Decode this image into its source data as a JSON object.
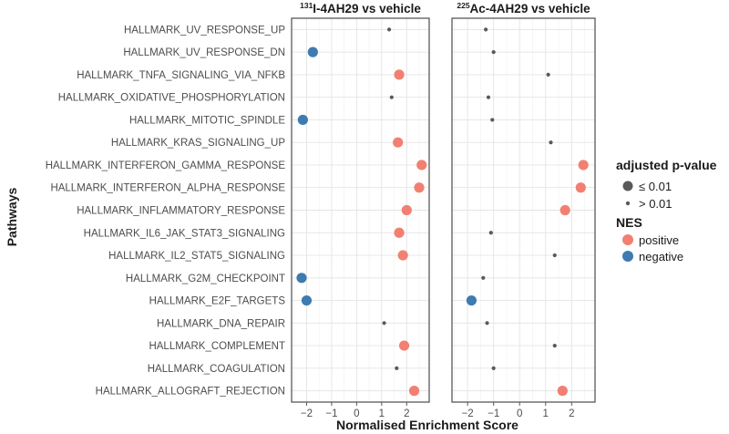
{
  "chart_data": {
    "type": "scatter",
    "title": "",
    "xlabel": "Normalised Enrichment Score",
    "ylabel": "Pathways",
    "xlim": [
      -2.6,
      2.9
    ],
    "x_ticks": [
      -2,
      -1,
      0,
      1,
      2
    ],
    "pathways": [
      "HALLMARK_UV_RESPONSE_UP",
      "HALLMARK_UV_RESPONSE_DN",
      "HALLMARK_TNFA_SIGNALING_VIA_NFKB",
      "HALLMARK_OXIDATIVE_PHOSPHORYLATION",
      "HALLMARK_MITOTIC_SPINDLE",
      "HALLMARK_KRAS_SIGNALING_UP",
      "HALLMARK_INTERFERON_GAMMA_RESPONSE",
      "HALLMARK_INTERFERON_ALPHA_RESPONSE",
      "HALLMARK_INFLAMMATORY_RESPONSE",
      "HALLMARK_IL6_JAK_STAT3_SIGNALING",
      "HALLMARK_IL2_STAT5_SIGNALING",
      "HALLMARK_G2M_CHECKPOINT",
      "HALLMARK_E2F_TARGETS",
      "HALLMARK_DNA_REPAIR",
      "HALLMARK_COMPLEMENT",
      "HALLMARK_COAGULATION",
      "HALLMARK_ALLOGRAFT_REJECTION"
    ],
    "panels": [
      {
        "title_sup": "131",
        "title_main": "I-4AH29 vs vehicle",
        "points": [
          {
            "pathway": "HALLMARK_UV_RESPONSE_UP",
            "nes": 1.3,
            "significant": false
          },
          {
            "pathway": "HALLMARK_UV_RESPONSE_DN",
            "nes": -1.75,
            "significant": true
          },
          {
            "pathway": "HALLMARK_TNFA_SIGNALING_VIA_NFKB",
            "nes": 1.7,
            "significant": true
          },
          {
            "pathway": "HALLMARK_OXIDATIVE_PHOSPHORYLATION",
            "nes": 1.4,
            "significant": false
          },
          {
            "pathway": "HALLMARK_MITOTIC_SPINDLE",
            "nes": -2.15,
            "significant": true
          },
          {
            "pathway": "HALLMARK_KRAS_SIGNALING_UP",
            "nes": 1.65,
            "significant": true
          },
          {
            "pathway": "HALLMARK_INTERFERON_GAMMA_RESPONSE",
            "nes": 2.6,
            "significant": true
          },
          {
            "pathway": "HALLMARK_INTERFERON_ALPHA_RESPONSE",
            "nes": 2.5,
            "significant": true
          },
          {
            "pathway": "HALLMARK_INFLAMMATORY_RESPONSE",
            "nes": 2.0,
            "significant": true
          },
          {
            "pathway": "HALLMARK_IL6_JAK_STAT3_SIGNALING",
            "nes": 1.7,
            "significant": true
          },
          {
            "pathway": "HALLMARK_IL2_STAT5_SIGNALING",
            "nes": 1.85,
            "significant": true
          },
          {
            "pathway": "HALLMARK_G2M_CHECKPOINT",
            "nes": -2.2,
            "significant": true
          },
          {
            "pathway": "HALLMARK_E2F_TARGETS",
            "nes": -2.0,
            "significant": true
          },
          {
            "pathway": "HALLMARK_DNA_REPAIR",
            "nes": 1.1,
            "significant": false
          },
          {
            "pathway": "HALLMARK_COMPLEMENT",
            "nes": 1.9,
            "significant": true
          },
          {
            "pathway": "HALLMARK_COAGULATION",
            "nes": 1.6,
            "significant": false
          },
          {
            "pathway": "HALLMARK_ALLOGRAFT_REJECTION",
            "nes": 2.3,
            "significant": true
          }
        ]
      },
      {
        "title_sup": "225",
        "title_main": "Ac-4AH29 vs vehicle",
        "points": [
          {
            "pathway": "HALLMARK_UV_RESPONSE_UP",
            "nes": -1.3,
            "significant": false
          },
          {
            "pathway": "HALLMARK_UV_RESPONSE_DN",
            "nes": -1.0,
            "significant": false
          },
          {
            "pathway": "HALLMARK_TNFA_SIGNALING_VIA_NFKB",
            "nes": 1.1,
            "significant": false
          },
          {
            "pathway": "HALLMARK_OXIDATIVE_PHOSPHORYLATION",
            "nes": -1.2,
            "significant": false
          },
          {
            "pathway": "HALLMARK_MITOTIC_SPINDLE",
            "nes": -1.05,
            "significant": false
          },
          {
            "pathway": "HALLMARK_KRAS_SIGNALING_UP",
            "nes": 1.2,
            "significant": false
          },
          {
            "pathway": "HALLMARK_INTERFERON_GAMMA_RESPONSE",
            "nes": 2.45,
            "significant": true
          },
          {
            "pathway": "HALLMARK_INTERFERON_ALPHA_RESPONSE",
            "nes": 2.35,
            "significant": true
          },
          {
            "pathway": "HALLMARK_INFLAMMATORY_RESPONSE",
            "nes": 1.75,
            "significant": true
          },
          {
            "pathway": "HALLMARK_IL6_JAK_STAT3_SIGNALING",
            "nes": -1.1,
            "significant": false
          },
          {
            "pathway": "HALLMARK_IL2_STAT5_SIGNALING",
            "nes": 1.35,
            "significant": false
          },
          {
            "pathway": "HALLMARK_G2M_CHECKPOINT",
            "nes": -1.4,
            "significant": false
          },
          {
            "pathway": "HALLMARK_E2F_TARGETS",
            "nes": -1.85,
            "significant": true
          },
          {
            "pathway": "HALLMARK_DNA_REPAIR",
            "nes": -1.25,
            "significant": false
          },
          {
            "pathway": "HALLMARK_COMPLEMENT",
            "nes": 1.35,
            "significant": false
          },
          {
            "pathway": "HALLMARK_COAGULATION",
            "nes": -1.0,
            "significant": false
          },
          {
            "pathway": "HALLMARK_ALLOGRAFT_REJECTION",
            "nes": 1.65,
            "significant": true
          }
        ]
      }
    ],
    "legend": {
      "position": "right",
      "size_title": "adjusted p-value",
      "size_entries": [
        "≤ 0.01",
        "> 0.01"
      ],
      "color_title": "NES",
      "color_entries": [
        "positive",
        "negative"
      ]
    }
  },
  "colors": {
    "positive": "#f28072",
    "negative": "#3e7bb0",
    "nonsignificant": "#595959"
  }
}
